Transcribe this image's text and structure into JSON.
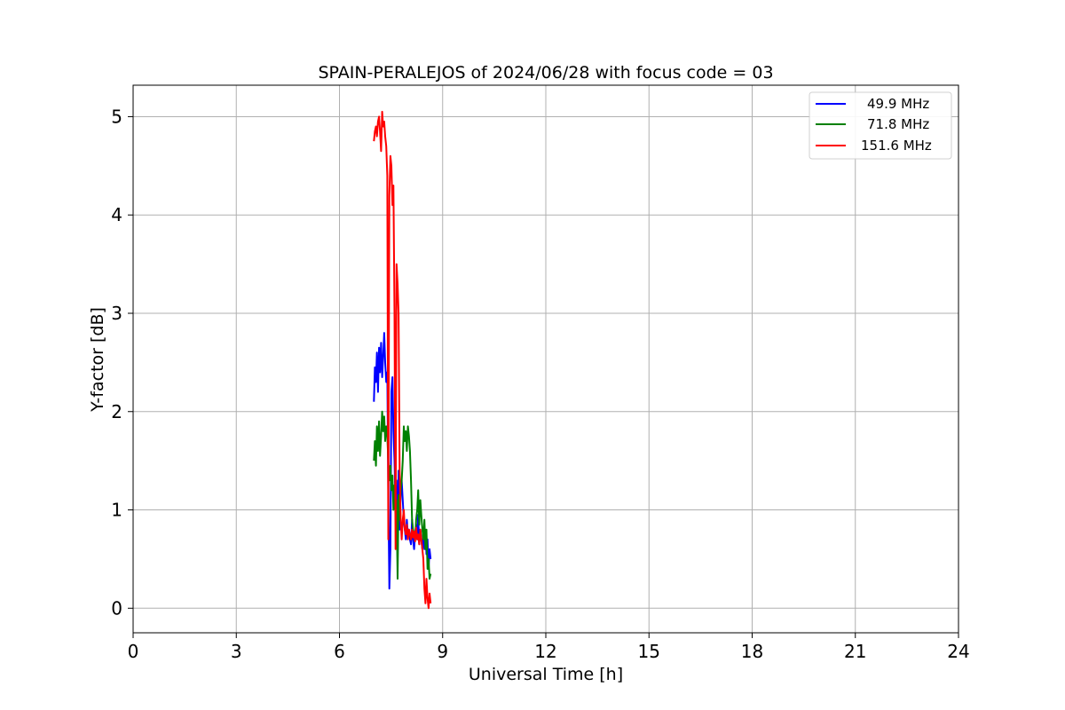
{
  "chart_data": {
    "type": "line",
    "title": "SPAIN-PERALEJOS of 2024/06/28 with focus code = 03",
    "xlabel": "Universal Time [h]",
    "ylabel": "Y-factor [dB]",
    "xlim": [
      0,
      24
    ],
    "ylim": [
      -0.25,
      5.32
    ],
    "xticks": [
      0,
      3,
      6,
      9,
      12,
      15,
      18,
      21,
      24
    ],
    "yticks": [
      0,
      1,
      2,
      3,
      4,
      5
    ],
    "grid": true,
    "legend_position": "top-right",
    "series": [
      {
        "name": "49.9 MHz",
        "color": "#0000ff",
        "x": [
          7.0,
          7.03,
          7.06,
          7.09,
          7.12,
          7.15,
          7.18,
          7.21,
          7.24,
          7.27,
          7.3,
          7.33,
          7.36,
          7.39,
          7.42,
          7.45,
          7.48,
          7.51,
          7.54,
          7.57,
          7.6,
          7.63,
          7.66,
          7.69,
          7.72,
          7.75,
          7.78,
          7.81,
          7.84,
          7.87,
          7.9,
          7.93,
          7.96,
          7.99,
          8.02,
          8.05,
          8.08,
          8.11,
          8.14,
          8.17,
          8.2,
          8.23,
          8.26,
          8.29,
          8.32,
          8.35,
          8.38,
          8.41,
          8.44,
          8.47,
          8.5,
          8.53,
          8.56,
          8.59,
          8.62,
          8.65
        ],
        "y": [
          2.1,
          2.45,
          2.3,
          2.6,
          2.2,
          2.65,
          2.4,
          2.7,
          2.35,
          2.55,
          2.8,
          2.5,
          2.3,
          2.4,
          1.2,
          0.2,
          0.6,
          2.2,
          2.35,
          1.8,
          1.5,
          1.0,
          1.3,
          0.5,
          1.4,
          0.8,
          1.2,
          1.3,
          1.1,
          0.9,
          0.8,
          0.7,
          0.9,
          0.75,
          0.8,
          0.7,
          0.65,
          0.9,
          0.7,
          0.6,
          0.75,
          0.85,
          0.7,
          0.95,
          0.65,
          0.8,
          0.7,
          0.6,
          0.75,
          0.6,
          0.8,
          0.55,
          0.7,
          0.4,
          0.6,
          0.5
        ]
      },
      {
        "name": "71.8 MHz",
        "color": "#008000",
        "x": [
          7.0,
          7.03,
          7.06,
          7.09,
          7.12,
          7.15,
          7.18,
          7.21,
          7.24,
          7.27,
          7.3,
          7.33,
          7.36,
          7.39,
          7.42,
          7.45,
          7.48,
          7.51,
          7.54,
          7.57,
          7.6,
          7.63,
          7.66,
          7.69,
          7.72,
          7.75,
          7.78,
          7.81,
          7.84,
          7.87,
          7.9,
          7.93,
          7.96,
          7.99,
          8.02,
          8.05,
          8.08,
          8.11,
          8.14,
          8.17,
          8.2,
          8.23,
          8.26,
          8.29,
          8.32,
          8.35,
          8.38,
          8.41,
          8.44,
          8.47,
          8.5,
          8.53,
          8.56,
          8.59,
          8.62,
          8.65
        ],
        "y": [
          1.5,
          1.7,
          1.45,
          1.85,
          1.6,
          1.9,
          1.55,
          1.75,
          2.0,
          1.8,
          1.95,
          1.7,
          1.85,
          1.75,
          1.5,
          1.3,
          1.45,
          1.2,
          1.35,
          1.0,
          1.25,
          0.9,
          1.1,
          0.3,
          1.15,
          0.9,
          1.2,
          1.3,
          1.5,
          1.85,
          1.7,
          1.8,
          1.6,
          1.85,
          1.75,
          1.6,
          1.3,
          0.9,
          0.8,
          0.75,
          0.7,
          0.9,
          1.0,
          1.2,
          0.85,
          1.1,
          0.95,
          0.8,
          0.7,
          0.9,
          0.6,
          0.8,
          0.4,
          0.5,
          0.3,
          0.35
        ]
      },
      {
        "name": "151.6 MHz",
        "color": "#ff0000",
        "x": [
          7.0,
          7.03,
          7.06,
          7.09,
          7.12,
          7.15,
          7.18,
          7.21,
          7.24,
          7.27,
          7.3,
          7.33,
          7.36,
          7.39,
          7.42,
          7.45,
          7.48,
          7.51,
          7.54,
          7.57,
          7.6,
          7.63,
          7.66,
          7.69,
          7.72,
          7.75,
          7.78,
          7.81,
          7.84,
          7.87,
          7.9,
          7.93,
          7.96,
          7.99,
          8.02,
          8.05,
          8.08,
          8.11,
          8.14,
          8.17,
          8.2,
          8.23,
          8.26,
          8.29,
          8.32,
          8.35,
          8.38,
          8.41,
          8.44,
          8.47,
          8.5,
          8.53,
          8.56,
          8.59,
          8.62,
          8.65
        ],
        "y": [
          4.75,
          4.85,
          4.9,
          4.8,
          4.95,
          5.0,
          4.85,
          4.65,
          5.05,
          4.9,
          4.95,
          4.8,
          4.7,
          4.4,
          0.7,
          4.2,
          4.6,
          4.5,
          4.1,
          4.3,
          3.0,
          0.6,
          3.5,
          3.3,
          3.0,
          1.4,
          0.9,
          0.7,
          0.9,
          1.0,
          0.8,
          0.75,
          0.85,
          0.7,
          0.8,
          0.75,
          0.7,
          0.8,
          0.72,
          0.78,
          0.68,
          0.82,
          0.7,
          0.75,
          0.65,
          0.8,
          0.7,
          0.6,
          0.5,
          0.2,
          0.05,
          0.3,
          0.1,
          0.0,
          0.15,
          0.05
        ]
      }
    ]
  }
}
